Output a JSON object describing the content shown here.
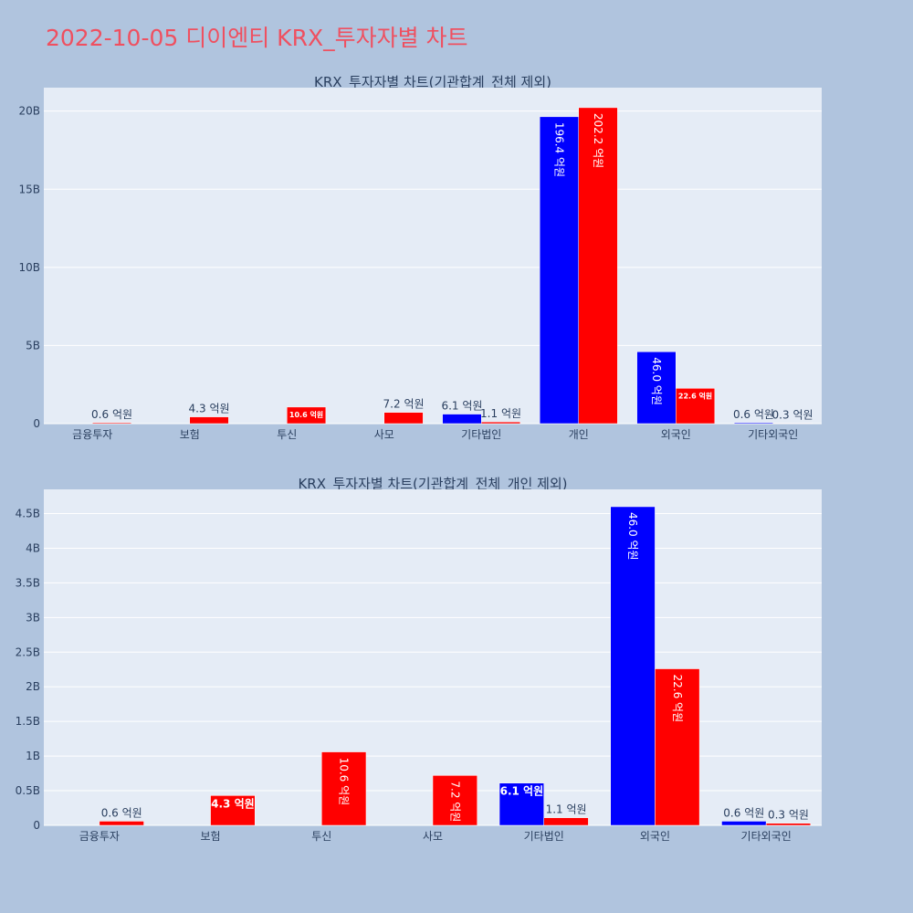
{
  "page_title": "2022-10-05 디이엔티 KRX_투자자별 차트",
  "colors": {
    "buy": "#0000ff",
    "sell": "#ff0000",
    "plot_bg": "#e5ecf6",
    "page_bg": "#b0c4de",
    "title": "#ef5060"
  },
  "chart_data": [
    {
      "type": "bar",
      "title": "KRX_투자자별 차트(기관합계_전체 제외)",
      "categories": [
        "금융투자",
        "보험",
        "투신",
        "사모",
        "기타법인",
        "개인",
        "외국인",
        "기타외국인"
      ],
      "ylim": [
        0,
        21.5
      ],
      "yticks": [
        0,
        5,
        10,
        15,
        20
      ],
      "ytick_labels": [
        "0",
        "5B",
        "10B",
        "15B",
        "20B"
      ],
      "series": [
        {
          "color": "#0000ff",
          "values": [
            0,
            0,
            0,
            0,
            0.61,
            19.64,
            4.6,
            0.06
          ],
          "labels": [
            "",
            "",
            "",
            "",
            "6.1 억원",
            "196.4 억원",
            "46.0 억원",
            "0.6 억원"
          ]
        },
        {
          "color": "#ff0000",
          "values": [
            0.06,
            0.43,
            1.06,
            0.72,
            0.11,
            20.22,
            2.26,
            0.03
          ],
          "labels": [
            "0.6 억원",
            "4.3 억원",
            "10.6 억원",
            "7.2 억원",
            "1.1 억원",
            "202.2 억원",
            "22.6 억원",
            "0.3 억원"
          ]
        }
      ],
      "grid": true
    },
    {
      "type": "bar",
      "title": "KRX_투자자별 차트(기관합계_전체_개인 제외)",
      "categories": [
        "금융투자",
        "보험",
        "투신",
        "사모",
        "기타법인",
        "외국인",
        "기타외국인"
      ],
      "ylim": [
        0,
        4.85
      ],
      "yticks": [
        0,
        0.5,
        1,
        1.5,
        2,
        2.5,
        3,
        3.5,
        4,
        4.5
      ],
      "ytick_labels": [
        "0",
        "0.5B",
        "1B",
        "1.5B",
        "2B",
        "2.5B",
        "3B",
        "3.5B",
        "4B",
        "4.5B"
      ],
      "series": [
        {
          "color": "#0000ff",
          "values": [
            0,
            0,
            0,
            0,
            0.61,
            4.6,
            0.06
          ],
          "labels": [
            "",
            "",
            "",
            "",
            "6.1 억원",
            "46.0 억원",
            "0.6 억원"
          ]
        },
        {
          "color": "#ff0000",
          "values": [
            0.06,
            0.43,
            1.06,
            0.72,
            0.11,
            2.26,
            0.03
          ],
          "labels": [
            "0.6 억원",
            "4.3 억원",
            "10.6 억원",
            "7.2 억원",
            "1.1 억원",
            "22.6 억원",
            "0.3 억원"
          ]
        }
      ],
      "grid": true
    }
  ]
}
